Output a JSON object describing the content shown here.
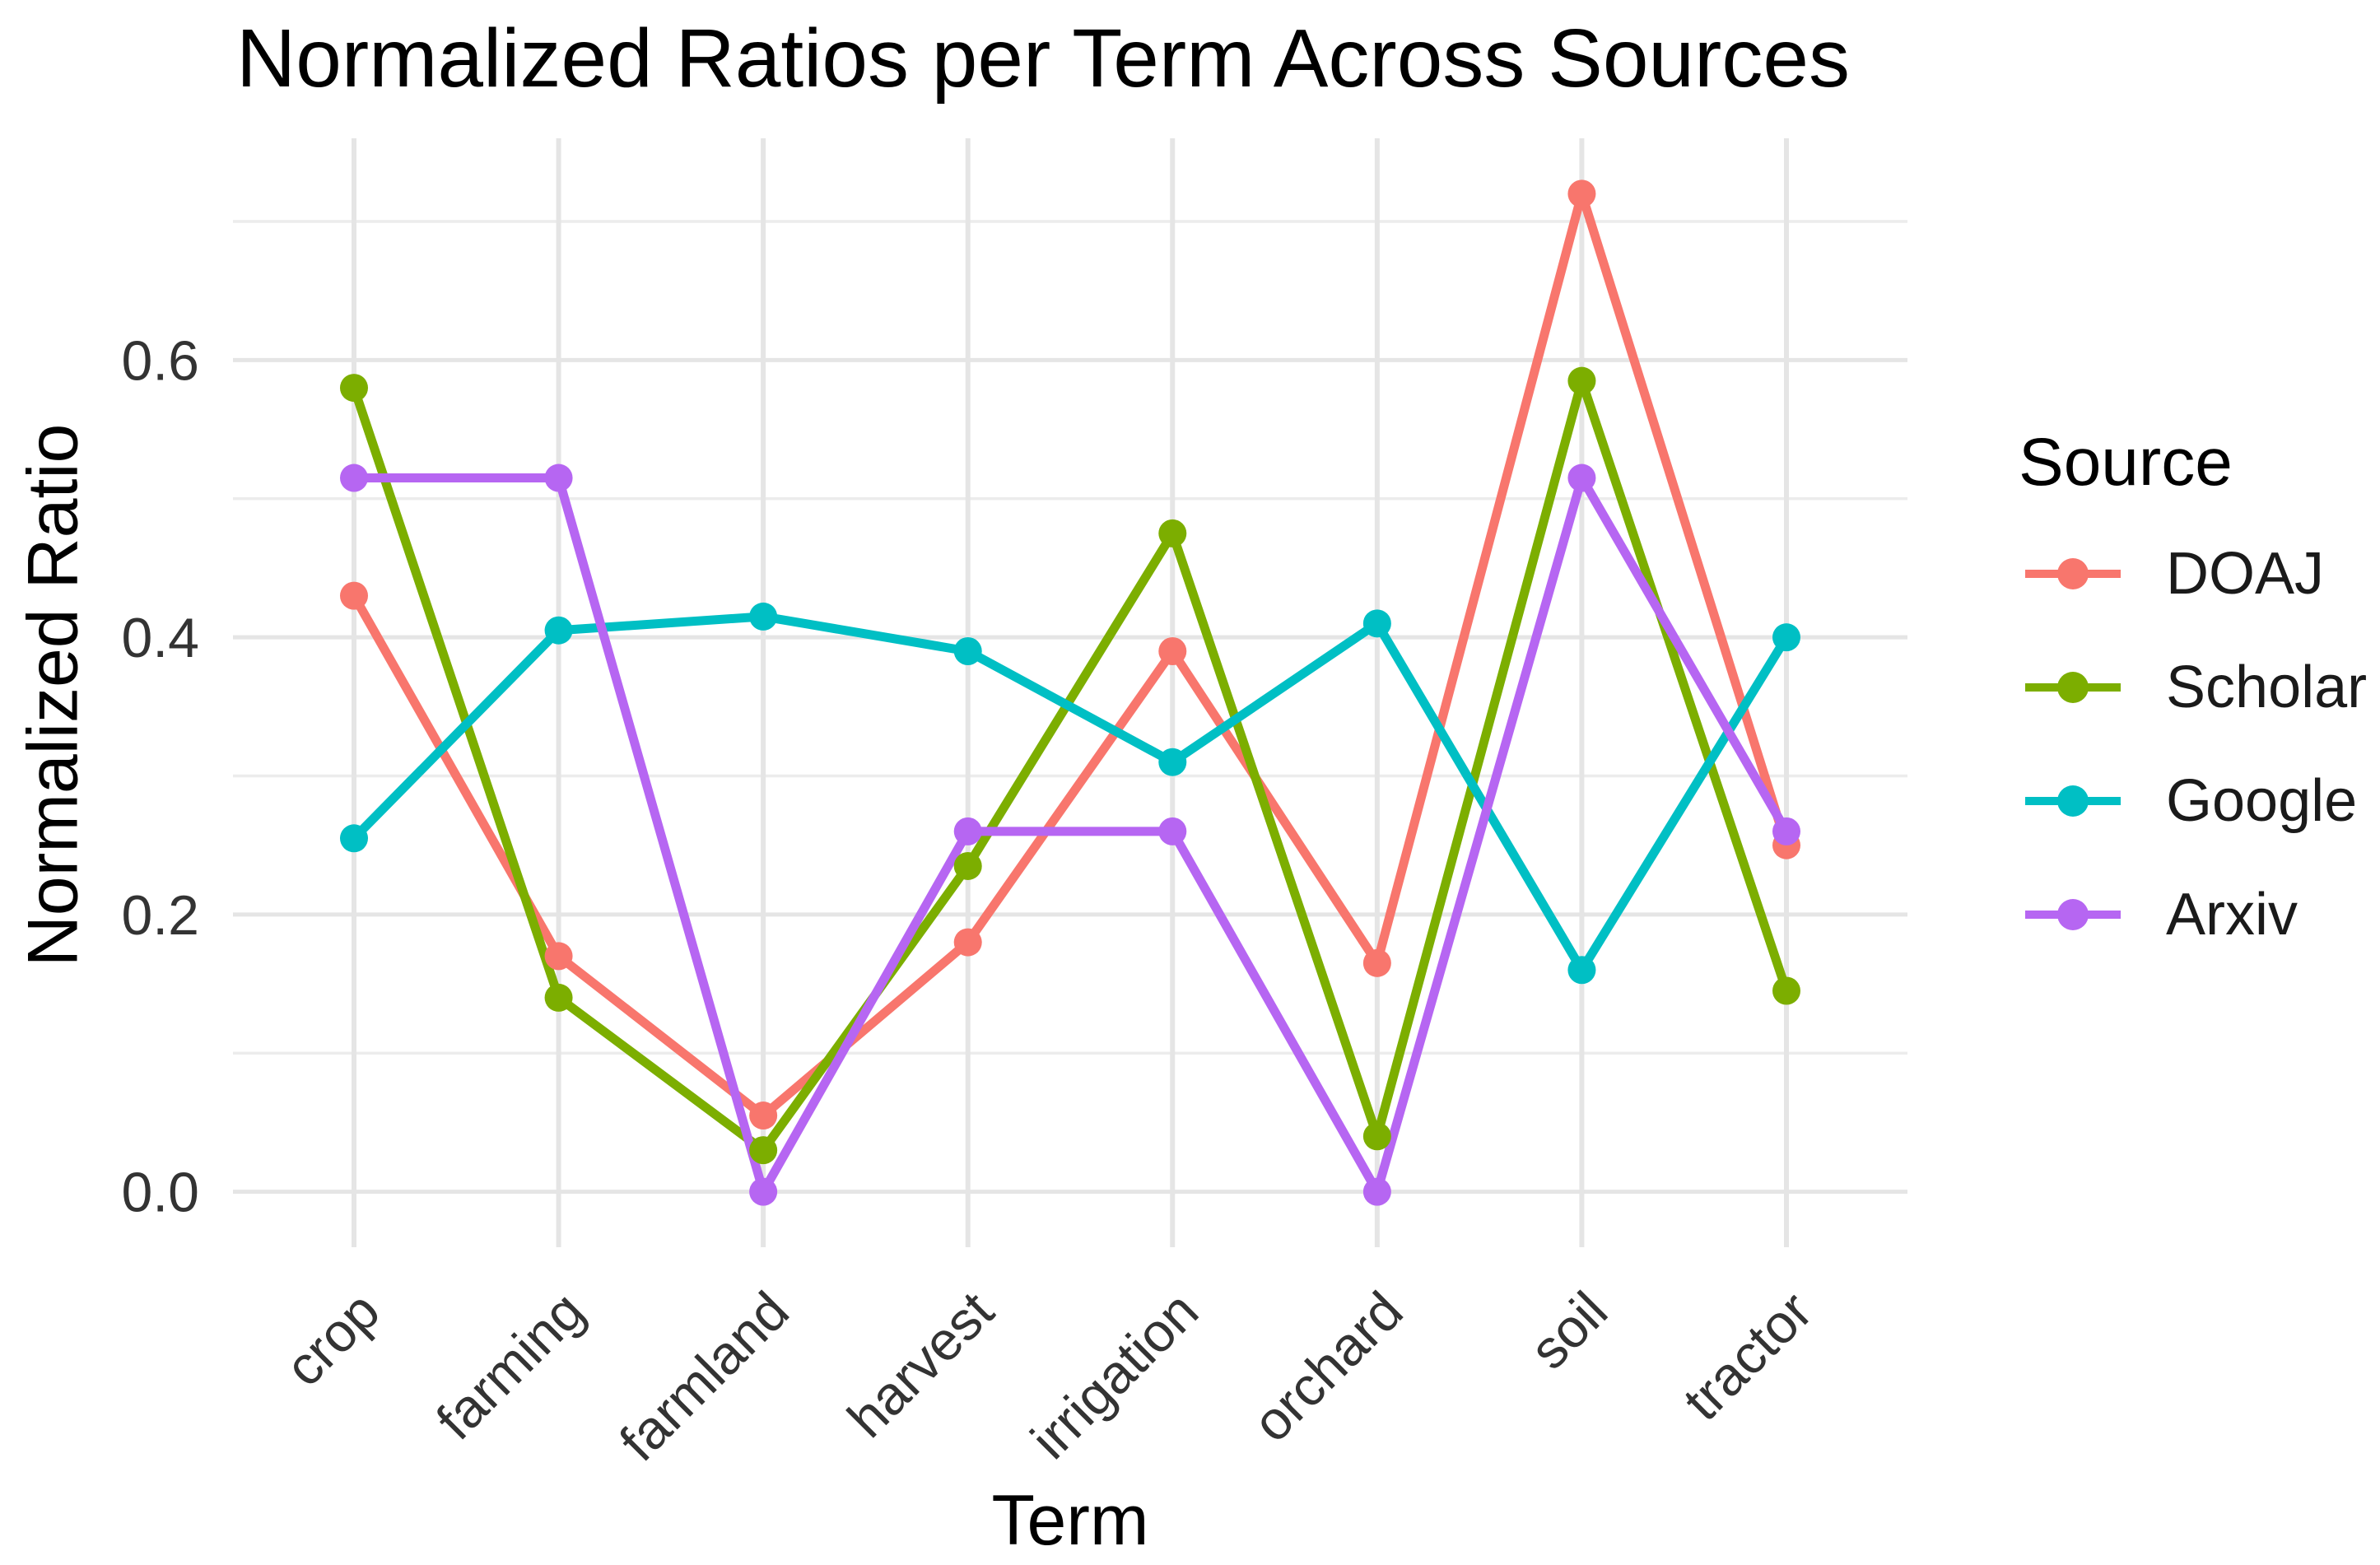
{
  "chart_data": {
    "type": "line",
    "title": "Normalized Ratios per Term Across Sources",
    "xlabel": "Term",
    "ylabel": "Normalized Ratio",
    "legend_title": "Source",
    "legend_position": "right",
    "categories": [
      "crop",
      "farming",
      "farmland",
      "harvest",
      "irrigation",
      "orchard",
      "soil",
      "tractor"
    ],
    "series": [
      {
        "name": "DOAJ",
        "color": "#F8766D",
        "values": [
          0.43,
          0.17,
          0.055,
          0.18,
          0.39,
          0.165,
          0.72,
          0.25
        ]
      },
      {
        "name": "Scholar",
        "color": "#7CAE00",
        "values": [
          0.58,
          0.14,
          0.03,
          0.235,
          0.475,
          0.04,
          0.585,
          0.145
        ]
      },
      {
        "name": "Google",
        "color": "#00BFC4",
        "values": [
          0.255,
          0.405,
          0.415,
          0.39,
          0.31,
          0.41,
          0.16,
          0.4
        ]
      },
      {
        "name": "Arxiv",
        "color": "#B666F2",
        "values": [
          0.515,
          0.515,
          0.0,
          0.26,
          0.26,
          0.0,
          0.515,
          0.26
        ]
      }
    ],
    "ylim": [
      -0.04,
      0.76
    ],
    "yticks": [
      0.0,
      0.2,
      0.4,
      0.6
    ],
    "ytick_labels": [
      "0.0",
      "0.2",
      "0.4",
      "0.6"
    ],
    "minor_yticks": [
      0.1,
      0.3,
      0.5,
      0.7
    ],
    "grid": true,
    "background": "#FFFFFF",
    "grid_color": "#E5E5E5",
    "minor_grid_color": "#ECECEC",
    "tick_text_color": "#333333"
  }
}
